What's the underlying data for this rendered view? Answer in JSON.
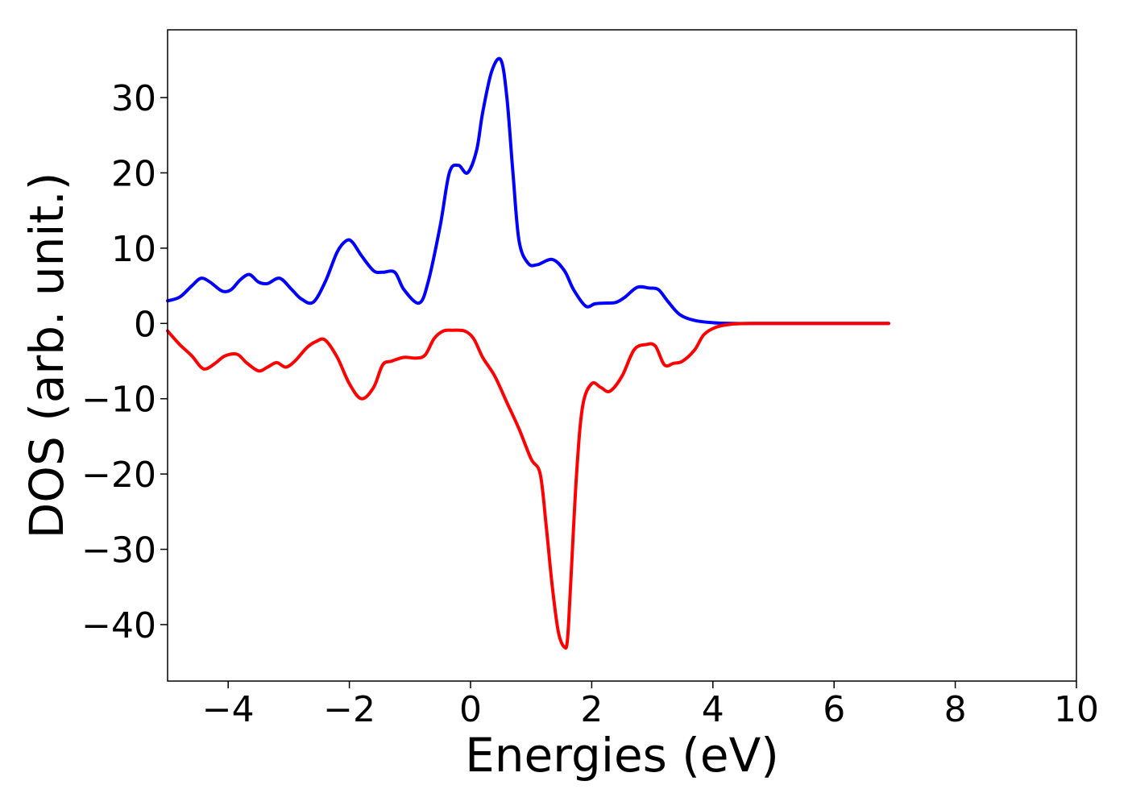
{
  "chart_data": {
    "type": "line",
    "title": "",
    "xlabel": "Energies (eV)",
    "ylabel": "DOS (arb. unit.)",
    "xlim": [
      -5,
      10
    ],
    "ylim": [
      -47.5,
      39
    ],
    "xticks": [
      -4,
      -2,
      0,
      2,
      4,
      6,
      8,
      10
    ],
    "yticks": [
      -40,
      -30,
      -20,
      -10,
      0,
      10,
      20,
      30
    ],
    "xtick_labels": [
      "−4",
      "−2",
      "0",
      "2",
      "4",
      "6",
      "8",
      "10"
    ],
    "ytick_labels": [
      "−40",
      "−30",
      "−20",
      "−10",
      "0",
      "10",
      "20",
      "30"
    ],
    "grid": false,
    "legend": "none",
    "series": [
      {
        "color": "#0000ff",
        "x": [
          -5.0,
          -4.8,
          -4.6,
          -4.45,
          -4.3,
          -4.1,
          -3.95,
          -3.8,
          -3.65,
          -3.5,
          -3.35,
          -3.15,
          -2.95,
          -2.8,
          -2.6,
          -2.4,
          -2.2,
          -2.05,
          -1.95,
          -1.8,
          -1.6,
          -1.45,
          -1.25,
          -1.1,
          -0.85,
          -0.7,
          -0.5,
          -0.35,
          -0.2,
          -0.05,
          0.1,
          0.2,
          0.35,
          0.5,
          0.6,
          0.7,
          0.8,
          0.95,
          1.1,
          1.35,
          1.55,
          1.7,
          1.9,
          2.05,
          2.2,
          2.4,
          2.55,
          2.75,
          2.95,
          3.1,
          3.25,
          3.45,
          3.7,
          4.0,
          4.3,
          4.7,
          5.5,
          6.9
        ],
        "y": [
          3.0,
          3.5,
          5.0,
          6.0,
          5.5,
          4.3,
          4.5,
          5.8,
          6.5,
          5.5,
          5.3,
          6.0,
          4.5,
          3.3,
          2.8,
          5.5,
          9.5,
          11.0,
          10.8,
          9.0,
          7.0,
          6.8,
          6.8,
          4.5,
          2.7,
          5.5,
          13.0,
          20.0,
          21.0,
          20.0,
          23.0,
          28.0,
          33.5,
          35.0,
          30.0,
          20.0,
          11.0,
          8.0,
          7.8,
          8.5,
          7.0,
          4.5,
          2.3,
          2.6,
          2.7,
          2.8,
          3.5,
          4.8,
          4.7,
          4.5,
          3.0,
          1.2,
          0.4,
          0.1,
          0.0,
          0.0,
          0.0,
          0.0
        ]
      },
      {
        "color": "#ff0000",
        "x": [
          -5.0,
          -4.8,
          -4.6,
          -4.45,
          -4.35,
          -4.2,
          -4.05,
          -3.85,
          -3.7,
          -3.5,
          -3.35,
          -3.2,
          -3.05,
          -2.9,
          -2.7,
          -2.55,
          -2.4,
          -2.2,
          -2.0,
          -1.8,
          -1.6,
          -1.45,
          -1.3,
          -1.1,
          -0.9,
          -0.75,
          -0.6,
          -0.45,
          -0.3,
          -0.1,
          0.05,
          0.2,
          0.4,
          0.6,
          0.8,
          1.0,
          1.15,
          1.25,
          1.35,
          1.45,
          1.55,
          1.6,
          1.65,
          1.75,
          1.85,
          2.0,
          2.15,
          2.3,
          2.5,
          2.7,
          2.9,
          3.05,
          3.2,
          3.35,
          3.5,
          3.7,
          3.85,
          4.05,
          4.3,
          4.6,
          5.0,
          6.9
        ],
        "y": [
          -1.0,
          -2.8,
          -4.3,
          -5.8,
          -6.0,
          -5.2,
          -4.3,
          -4.1,
          -5.2,
          -6.3,
          -5.8,
          -5.2,
          -5.8,
          -5.0,
          -3.2,
          -2.4,
          -2.2,
          -4.5,
          -8.0,
          -10.0,
          -8.5,
          -5.5,
          -5.0,
          -4.5,
          -4.6,
          -4.2,
          -2.0,
          -1.0,
          -0.9,
          -1.0,
          -2.0,
          -4.5,
          -7.0,
          -10.5,
          -14.0,
          -18.0,
          -20.0,
          -27.0,
          -35.0,
          -41.0,
          -43.0,
          -42.0,
          -35.0,
          -20.0,
          -11.0,
          -8.0,
          -8.5,
          -9.0,
          -7.0,
          -3.5,
          -2.8,
          -3.0,
          -5.5,
          -5.3,
          -5.0,
          -3.5,
          -1.5,
          -0.5,
          -0.1,
          0.0,
          0.0,
          0.0
        ]
      }
    ]
  }
}
